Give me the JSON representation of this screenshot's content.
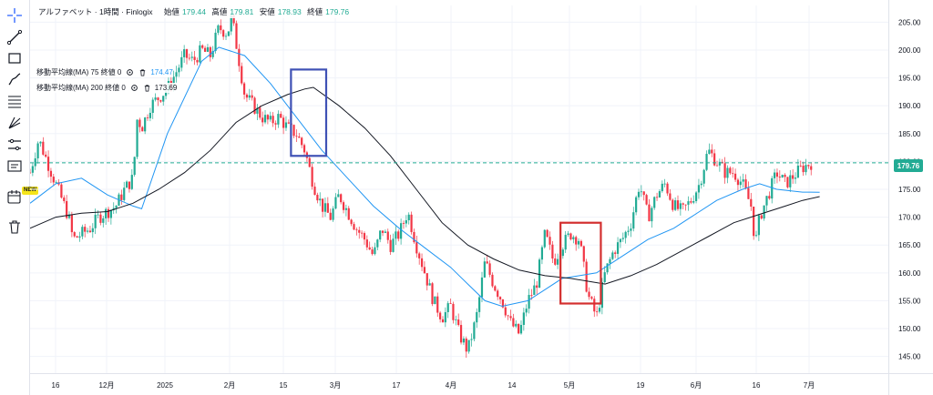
{
  "header": {
    "title": "アルファベット · 1時間 · Finlogix",
    "open_label": "始値",
    "open": "179.44",
    "high_label": "高値",
    "high": "179.81",
    "low_label": "安値",
    "low": "178.93",
    "close_label": "終値",
    "close": "179.76"
  },
  "indicators": [
    {
      "label": "移動平均線(MA) 75 終値 0",
      "value": "174.47",
      "color": "#2196f3"
    },
    {
      "label": "移動平均線(MA) 200 終値 0",
      "value": "173.69",
      "color": "#131722"
    }
  ],
  "toolbar": {
    "icons": [
      "crosshair-icon",
      "trend-line-icon",
      "rectangle-icon",
      "brush-icon",
      "fib-icon",
      "pitchfork-icon",
      "measure-icon",
      "text-note-icon",
      "calendar-icon",
      "trash-icon"
    ],
    "new_badge": "NEW"
  },
  "last_price_label": "179.76",
  "colors": {
    "up": "#22ab94",
    "down": "#f23645",
    "ma75": "#2196f3",
    "ma200": "#131722",
    "price_line": "#22ab94"
  },
  "chart_data": {
    "type": "candlestick",
    "title": "アルファベット · 1時間 · Finlogix",
    "ylim": [
      142,
      208
    ],
    "y_ticks": [
      145,
      150,
      155,
      160,
      165,
      170,
      175,
      180,
      185,
      190,
      195,
      200,
      205
    ],
    "x_tick_labels": [
      "16",
      "12月",
      "2025",
      "2月",
      "15",
      "3月",
      "17",
      "4月",
      "14",
      "5月",
      "19",
      "6月",
      "16",
      "7月"
    ],
    "last_price": 179.76,
    "series": [
      {
        "name": "移動平均線(MA) 75 終値 0",
        "points": [
          [
            0,
            172.5
          ],
          [
            0.03,
            176
          ],
          [
            0.06,
            177
          ],
          [
            0.09,
            174
          ],
          [
            0.12,
            172
          ],
          [
            0.13,
            171.5
          ],
          [
            0.16,
            185
          ],
          [
            0.2,
            198
          ],
          [
            0.22,
            200.5
          ],
          [
            0.25,
            199
          ],
          [
            0.28,
            194
          ],
          [
            0.31,
            188
          ],
          [
            0.34,
            182
          ],
          [
            0.37,
            177
          ],
          [
            0.4,
            172
          ],
          [
            0.43,
            168
          ],
          [
            0.46,
            164.5
          ],
          [
            0.49,
            161
          ],
          [
            0.51,
            158
          ],
          [
            0.53,
            155
          ],
          [
            0.55,
            154
          ],
          [
            0.58,
            155
          ],
          [
            0.6,
            157
          ],
          [
            0.62,
            159
          ],
          [
            0.64,
            159.5
          ],
          [
            0.66,
            160
          ],
          [
            0.68,
            162
          ],
          [
            0.7,
            164
          ],
          [
            0.72,
            166
          ],
          [
            0.75,
            168
          ],
          [
            0.77,
            170
          ],
          [
            0.8,
            173
          ],
          [
            0.83,
            175
          ],
          [
            0.85,
            176
          ],
          [
            0.87,
            175
          ],
          [
            0.9,
            174.5
          ],
          [
            0.92,
            174.47
          ]
        ]
      },
      {
        "name": "移動平均線(MA) 200 終値 0",
        "points": [
          [
            0,
            168
          ],
          [
            0.03,
            170
          ],
          [
            0.06,
            170.7
          ],
          [
            0.09,
            171
          ],
          [
            0.12,
            172.5
          ],
          [
            0.15,
            175
          ],
          [
            0.18,
            178
          ],
          [
            0.21,
            182
          ],
          [
            0.24,
            187
          ],
          [
            0.27,
            190
          ],
          [
            0.3,
            192
          ],
          [
            0.32,
            193
          ],
          [
            0.33,
            193.3
          ],
          [
            0.36,
            190
          ],
          [
            0.39,
            186
          ],
          [
            0.42,
            181
          ],
          [
            0.45,
            175
          ],
          [
            0.48,
            169
          ],
          [
            0.51,
            165
          ],
          [
            0.54,
            162.5
          ],
          [
            0.57,
            160.5
          ],
          [
            0.6,
            159.5
          ],
          [
            0.63,
            159
          ],
          [
            0.65,
            158.5
          ],
          [
            0.67,
            158
          ],
          [
            0.7,
            159.5
          ],
          [
            0.73,
            161.5
          ],
          [
            0.76,
            164
          ],
          [
            0.79,
            166.5
          ],
          [
            0.82,
            169
          ],
          [
            0.85,
            170.5
          ],
          [
            0.88,
            172
          ],
          [
            0.9,
            173
          ],
          [
            0.92,
            173.69
          ]
        ]
      }
    ],
    "price_path": [
      [
        0,
        178
      ],
      [
        0.01,
        184
      ],
      [
        0.02,
        180
      ],
      [
        0.03,
        176
      ],
      [
        0.045,
        170
      ],
      [
        0.05,
        166
      ],
      [
        0.07,
        168
      ],
      [
        0.08,
        170
      ],
      [
        0.1,
        172
      ],
      [
        0.11,
        175
      ],
      [
        0.12,
        177
      ],
      [
        0.125,
        188
      ],
      [
        0.13,
        186
      ],
      [
        0.14,
        190
      ],
      [
        0.16,
        193
      ],
      [
        0.18,
        199
      ],
      [
        0.19,
        198
      ],
      [
        0.2,
        200
      ],
      [
        0.21,
        199
      ],
      [
        0.22,
        204
      ],
      [
        0.23,
        203
      ],
      [
        0.235,
        206
      ],
      [
        0.25,
        192
      ],
      [
        0.26,
        190
      ],
      [
        0.27,
        188
      ],
      [
        0.28,
        187
      ],
      [
        0.29,
        188
      ],
      [
        0.3,
        186
      ],
      [
        0.31,
        185
      ],
      [
        0.32,
        182
      ],
      [
        0.33,
        176
      ],
      [
        0.34,
        172
      ],
      [
        0.35,
        170
      ],
      [
        0.36,
        174
      ],
      [
        0.37,
        171
      ],
      [
        0.38,
        168
      ],
      [
        0.39,
        166
      ],
      [
        0.4,
        163
      ],
      [
        0.41,
        168
      ],
      [
        0.42,
        165
      ],
      [
        0.43,
        167
      ],
      [
        0.44,
        171
      ],
      [
        0.45,
        165
      ],
      [
        0.46,
        160
      ],
      [
        0.47,
        155
      ],
      [
        0.48,
        152
      ],
      [
        0.49,
        154
      ],
      [
        0.5,
        149
      ],
      [
        0.51,
        146
      ],
      [
        0.52,
        152
      ],
      [
        0.53,
        162
      ],
      [
        0.54,
        158
      ],
      [
        0.55,
        155
      ],
      [
        0.56,
        151
      ],
      [
        0.57,
        149
      ],
      [
        0.58,
        155
      ],
      [
        0.59,
        158
      ],
      [
        0.6,
        167
      ],
      [
        0.61,
        162
      ],
      [
        0.62,
        165
      ],
      [
        0.63,
        167
      ],
      [
        0.64,
        166
      ],
      [
        0.65,
        156
      ],
      [
        0.66,
        152
      ],
      [
        0.67,
        160
      ],
      [
        0.68,
        164
      ],
      [
        0.69,
        166
      ],
      [
        0.7,
        169
      ],
      [
        0.71,
        176
      ],
      [
        0.72,
        170
      ],
      [
        0.73,
        174
      ],
      [
        0.74,
        176
      ],
      [
        0.75,
        172
      ],
      [
        0.76,
        171
      ],
      [
        0.77,
        173
      ],
      [
        0.78,
        176
      ],
      [
        0.79,
        182
      ],
      [
        0.8,
        180
      ],
      [
        0.81,
        178
      ],
      [
        0.82,
        178
      ],
      [
        0.83,
        176
      ],
      [
        0.84,
        172
      ],
      [
        0.845,
        165
      ],
      [
        0.85,
        170
      ],
      [
        0.86,
        174
      ],
      [
        0.87,
        178
      ],
      [
        0.88,
        176
      ],
      [
        0.9,
        178.93
      ],
      [
        0.91,
        179.76
      ]
    ],
    "annotations": [
      {
        "type": "rectangle",
        "color": "#3f51b5",
        "x_range": [
          0.304,
          0.345
        ],
        "y_range": [
          181,
          196.5
        ]
      },
      {
        "type": "rectangle",
        "color": "#d32f2f",
        "x_range": [
          0.618,
          0.665
        ],
        "y_range": [
          154.5,
          169
        ]
      }
    ]
  }
}
